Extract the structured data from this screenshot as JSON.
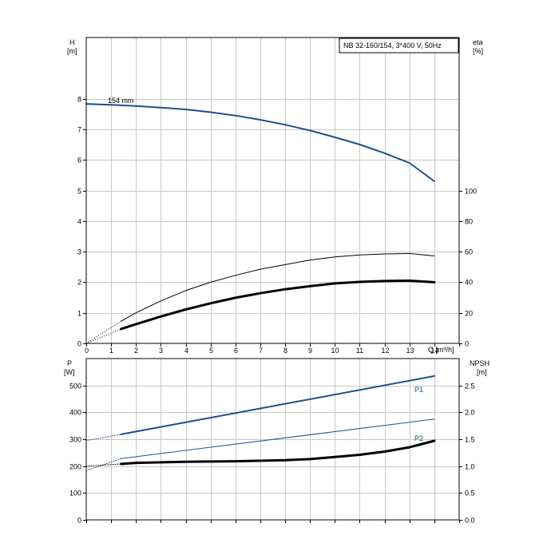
{
  "chart_data": [
    {
      "type": "line",
      "title": "NB 32-160/154, 3*400 V, 50Hz",
      "xlabel": "Q [m³/h]",
      "ylabel_left": [
        "H",
        "[m]"
      ],
      "ylabel_right": [
        "eta",
        "[%]"
      ],
      "xlim": [
        0,
        15
      ],
      "ylim_left": [
        0,
        10
      ],
      "ylim_right": [
        0,
        200
      ],
      "x_ticks": [
        0,
        1,
        2,
        3,
        4,
        5,
        6,
        7,
        8,
        9,
        10,
        11,
        12,
        13,
        14
      ],
      "y_ticks_left": [
        0,
        1,
        2,
        3,
        4,
        5,
        6,
        7,
        8
      ],
      "y_ticks_right": [
        0,
        20,
        40,
        60,
        80,
        100
      ],
      "grid": true,
      "annotation": "154 mm",
      "series": [
        {
          "color": "#1f4e8c",
          "width": 2,
          "axis": "left",
          "x": [
            0,
            1,
            2,
            3,
            4,
            5,
            6,
            7,
            8,
            9,
            10,
            11,
            12,
            13,
            14
          ],
          "y": [
            7.83,
            7.8,
            7.76,
            7.71,
            7.65,
            7.56,
            7.45,
            7.31,
            7.15,
            6.96,
            6.74,
            6.5,
            6.22,
            5.9,
            5.3
          ]
        },
        {
          "color": "#000000",
          "width": 1,
          "axis": "right",
          "x": [
            1.4,
            2,
            3,
            4,
            5,
            6,
            7,
            8,
            9,
            10,
            11,
            12,
            13,
            14
          ],
          "y": [
            14.5,
            20,
            27.8,
            34.5,
            40,
            44.5,
            48.5,
            51.5,
            54.5,
            56.5,
            57.8,
            58.5,
            58.8,
            57.2
          ]
        },
        {
          "color": "#000000",
          "width": 3,
          "axis": "left",
          "x": [
            1.4,
            2,
            3,
            4,
            5,
            6,
            7,
            8,
            9,
            10,
            11,
            12,
            13,
            14
          ],
          "y": [
            0.47,
            0.63,
            0.88,
            1.11,
            1.31,
            1.49,
            1.64,
            1.77,
            1.87,
            1.96,
            2.01,
            2.04,
            2.05,
            2.0
          ]
        }
      ]
    },
    {
      "type": "line",
      "xlabel": "",
      "ylabel_left": [
        "P",
        "[W]"
      ],
      "ylabel_right": [
        "NPSH",
        "[m]"
      ],
      "xlim": [
        0,
        15
      ],
      "ylim_left": [
        0,
        600
      ],
      "ylim_right": [
        0,
        3
      ],
      "x_ticks": [
        0,
        1,
        2,
        3,
        4,
        5,
        6,
        7,
        8,
        9,
        10,
        11,
        12,
        13,
        14
      ],
      "y_ticks_left": [
        0,
        100,
        200,
        300,
        400,
        500
      ],
      "y_ticks_right": [
        "0.0",
        "0.5",
        "1.0",
        "1.5",
        "2.0",
        "2.5"
      ],
      "grid": true,
      "series": [
        {
          "name": "P1",
          "color": "#1f4e8c",
          "width": 2,
          "axis": "left",
          "x": [
            1.4,
            14
          ],
          "y": [
            318,
            535
          ]
        },
        {
          "name": "P2",
          "color": "#1f4e8c",
          "width": 1,
          "axis": "left",
          "x": [
            1.4,
            14
          ],
          "y": [
            228,
            375
          ]
        },
        {
          "color": "#000000",
          "width": 3,
          "axis": "right",
          "x": [
            1.4,
            2,
            4,
            6,
            8,
            9,
            10,
            11,
            12,
            13,
            14
          ],
          "y": [
            1.04,
            1.06,
            1.08,
            1.09,
            1.11,
            1.13,
            1.17,
            1.21,
            1.27,
            1.35,
            1.47
          ]
        },
        {
          "color": "#1f4e8c",
          "width": 1,
          "axis": "left",
          "dotted": true,
          "x": [
            0,
            1.4
          ],
          "y": [
            295,
            318
          ]
        },
        {
          "color": "#1f4e8c",
          "width": 1,
          "axis": "left",
          "dotted": true,
          "x": [
            0,
            1.4
          ],
          "y": [
            183,
            228
          ]
        },
        {
          "color": "#000000",
          "width": 1,
          "axis": "right",
          "dotted": true,
          "x": [
            0,
            1.4
          ],
          "y": [
            1.0,
            1.04
          ]
        }
      ]
    }
  ]
}
